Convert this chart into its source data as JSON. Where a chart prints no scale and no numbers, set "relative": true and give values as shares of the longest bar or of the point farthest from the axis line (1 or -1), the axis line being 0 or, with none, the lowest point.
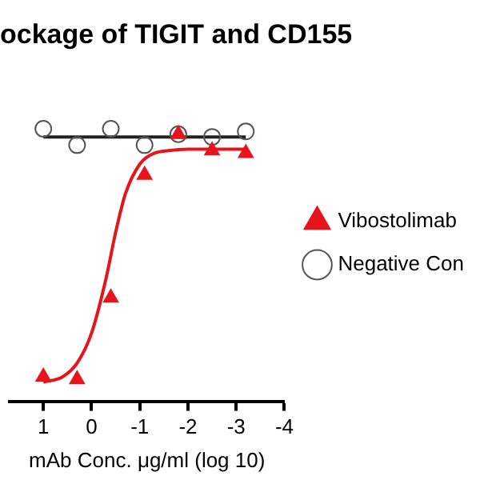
{
  "chart_data": {
    "type": "scatter",
    "title": "ockage of TIGIT and CD155",
    "xlabel": "mAb Conc. μg/ml (log 10)",
    "relative": true,
    "xlim": [
      1.7,
      -4
    ],
    "xticks": [
      1,
      0,
      -1,
      -2,
      -3,
      -4
    ],
    "grid": false,
    "legend": "right",
    "tick_labels": "x",
    "series": [
      {
        "name": "Vibostolimab",
        "type": "scatter",
        "color": "#e8141c",
        "marker": "triangle",
        "x": [
          1,
          0.3,
          -0.4,
          -1.1,
          -1.8,
          -2.5,
          -3.2
        ],
        "values": [
          0.09,
          0.08,
          0.38,
          0.83,
          0.98,
          0.92,
          0.91
        ]
      },
      {
        "name": "Negative Con",
        "type": "scatter",
        "color": "#555555",
        "marker": "circle",
        "x": [
          1,
          0.3,
          -0.4,
          -1.1,
          -1.8,
          -2.5,
          -3.2
        ],
        "values": [
          1,
          0.94,
          1,
          0.94,
          0.98,
          0.97,
          0.99
        ]
      },
      {
        "type": "line",
        "color": "#e8141c",
        "marker": "none",
        "x": [
          1,
          0.6,
          0.3,
          0,
          -0.3,
          -0.5,
          -0.7,
          -1,
          -1.3,
          -1.6,
          -2,
          -3.2
        ],
        "values": [
          0.07,
          0.09,
          0.14,
          0.25,
          0.45,
          0.62,
          0.76,
          0.87,
          0.91,
          0.92,
          0.925,
          0.925
        ]
      },
      {
        "type": "line",
        "color": "#222222",
        "marker": "none",
        "x": [
          1,
          -3.2
        ],
        "values": [
          0.97,
          0.97
        ]
      }
    ]
  }
}
